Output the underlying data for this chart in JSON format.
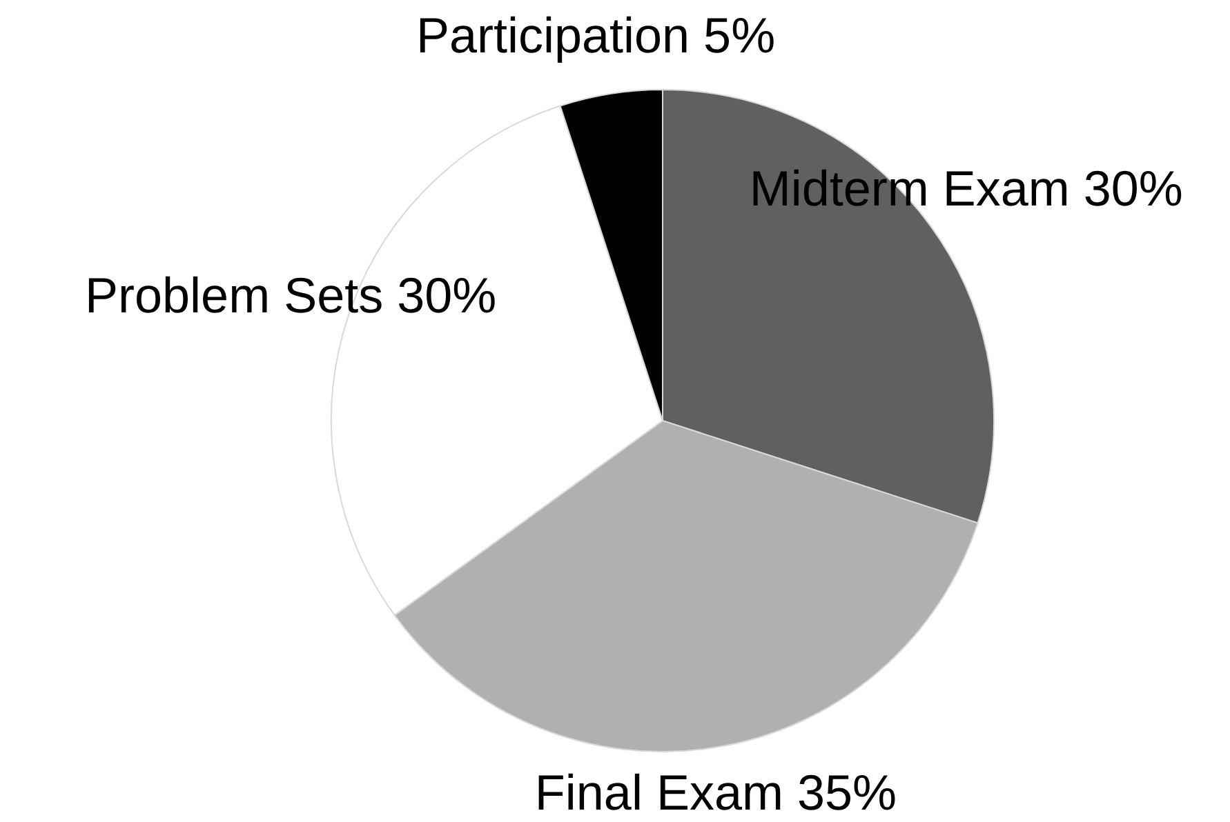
{
  "chart_data": {
    "type": "pie",
    "categories": [
      "Midterm Exam",
      "Final Exam",
      "Problem Sets",
      "Participation"
    ],
    "values": [
      30,
      35,
      30,
      5
    ],
    "value_labels": [
      "30%",
      "35%",
      "30%",
      "5%"
    ],
    "colors": [
      "#606060",
      "#b0b0b0",
      "#ffffff",
      "#000000"
    ],
    "legend": false
  }
}
